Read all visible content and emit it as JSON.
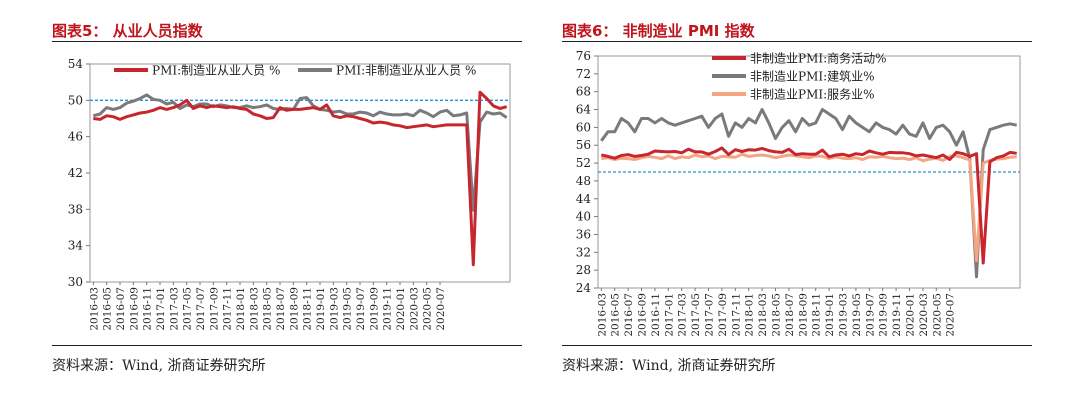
{
  "chart_data": [
    {
      "type": "line",
      "title": "图表5： 从业人员指数",
      "source": "资料来源：Wind, 浙商证券研究所",
      "ylim": [
        30,
        54
      ],
      "yticks": [
        "54",
        "50",
        "46",
        "42",
        "38",
        "34",
        "30"
      ],
      "reference_line": 50,
      "x_ticks": [
        "2016-03",
        "2016-05",
        "2016-07",
        "2016-09",
        "2016-11",
        "2017-01",
        "2017-03",
        "2017-05",
        "2017-07",
        "2017-09",
        "2017-11",
        "2018-01",
        "2018-03",
        "2018-05",
        "2018-07",
        "2018-09",
        "2018-11",
        "2019-01",
        "2019-03",
        "2019-05",
        "2019-07",
        "2019-09",
        "2019-11",
        "2020-01",
        "2020-03",
        "2020-05",
        "2020-07"
      ],
      "legend_position": "top",
      "series": [
        {
          "name": "PMI:制造业从业人员 %",
          "color": "#c8262e",
          "values": [
            48.0,
            47.9,
            48.3,
            48.2,
            47.9,
            48.2,
            48.4,
            48.6,
            48.7,
            48.9,
            49.2,
            49.0,
            49.2,
            49.5,
            50.0,
            49.1,
            49.4,
            49.2,
            49.4,
            49.3,
            49.2,
            49.3,
            49.1,
            49.0,
            48.5,
            48.3,
            48.0,
            48.1,
            49.2,
            48.9,
            49.0,
            49.0,
            49.1,
            49.2,
            49.0,
            49.5,
            48.3,
            48.1,
            48.3,
            48.2,
            48.0,
            47.8,
            47.5,
            47.6,
            47.5,
            47.3,
            47.2,
            47.0,
            47.1,
            47.2,
            47.3,
            47.1,
            47.2,
            47.3,
            47.3,
            47.3,
            47.3,
            31.9,
            50.9,
            50.2,
            49.4,
            49.1,
            49.3
          ]
        },
        {
          "name": "PMI:非制造业从业人员 %",
          "color": "#7a7a7a",
          "values": [
            48.3,
            48.5,
            49.2,
            49.0,
            49.2,
            49.7,
            49.9,
            50.2,
            50.6,
            50.1,
            50.0,
            49.6,
            49.8,
            49.1,
            49.5,
            49.3,
            49.6,
            49.6,
            49.3,
            49.5,
            49.4,
            49.2,
            49.2,
            49.4,
            49.2,
            49.3,
            49.5,
            49.1,
            49.0,
            49.1,
            49.0,
            50.2,
            50.3,
            49.4,
            49.0,
            48.9,
            48.7,
            48.8,
            48.5,
            48.5,
            48.7,
            48.6,
            48.3,
            48.7,
            48.5,
            48.4,
            48.4,
            48.5,
            48.3,
            48.9,
            48.6,
            48.2,
            48.7,
            48.9,
            48.3,
            48.4,
            48.6,
            37.9,
            47.6,
            48.7,
            48.5,
            48.6,
            48.1
          ]
        }
      ]
    },
    {
      "type": "line",
      "title": "图表6： 非制造业 PMI 指数",
      "source": "资料来源：Wind, 浙商证券研究所",
      "ylim": [
        24,
        76
      ],
      "yticks": [
        "76",
        "72",
        "68",
        "64",
        "60",
        "56",
        "52",
        "48",
        "44",
        "40",
        "36",
        "32",
        "28",
        "24"
      ],
      "reference_line": 50,
      "x_ticks": [
        "2016-03",
        "2016-05",
        "2016-07",
        "2016-09",
        "2016-11",
        "2017-01",
        "2017-03",
        "2017-05",
        "2017-07",
        "2017-09",
        "2017-11",
        "2018-01",
        "2018-03",
        "2018-05",
        "2018-07",
        "2018-09",
        "2018-11",
        "2019-01",
        "2019-03",
        "2019-05",
        "2019-07",
        "2019-09",
        "2019-11",
        "2020-01",
        "2020-03",
        "2020-05",
        "2020-07"
      ],
      "legend_position": "top",
      "series": [
        {
          "name": "非制造业PMI:商务活动%",
          "color": "#c8262e",
          "values": [
            53.8,
            53.5,
            53.1,
            53.7,
            53.9,
            53.5,
            53.7,
            54.0,
            54.7,
            54.6,
            54.5,
            54.6,
            54.3,
            55.1,
            54.5,
            54.5,
            54.0,
            54.6,
            55.4,
            53.9,
            55.0,
            54.6,
            55.0,
            54.9,
            55.3,
            54.8,
            54.5,
            54.4,
            55.1,
            53.9,
            54.1,
            54.0,
            54.0,
            54.9,
            53.4,
            53.8,
            54.0,
            53.6,
            54.1,
            53.9,
            54.7,
            54.3,
            54.0,
            54.4,
            54.3,
            54.3,
            54.1,
            53.6,
            53.8,
            53.5,
            53.2,
            53.8,
            52.8,
            54.4,
            54.1,
            53.5,
            54.1,
            29.6,
            52.3,
            53.2,
            53.6,
            54.4,
            54.2
          ]
        },
        {
          "name": "非制造业PMI:建筑业%",
          "color": "#7a7a7a",
          "values": [
            57.0,
            59.0,
            59.0,
            62.0,
            61.0,
            59.0,
            62.0,
            62.0,
            61.0,
            62.0,
            61.0,
            60.5,
            61.0,
            61.5,
            62.0,
            62.5,
            60.0,
            62.0,
            63.0,
            58.0,
            61.0,
            60.0,
            62.0,
            61.0,
            64.0,
            61.0,
            57.5,
            60.0,
            61.5,
            59.0,
            62.0,
            60.5,
            61.0,
            64.0,
            63.0,
            62.0,
            59.5,
            62.5,
            61.0,
            60.0,
            59.0,
            61.0,
            60.0,
            59.5,
            58.5,
            60.5,
            58.5,
            58.0,
            61.0,
            57.5,
            60.0,
            60.5,
            59.0,
            56.0,
            59.0,
            53.0,
            26.5,
            55.0,
            59.5,
            60.0,
            60.5,
            60.8,
            60.5
          ]
        },
        {
          "name": "非制造业PMI:服务业%",
          "color": "#f4a582",
          "values": [
            53.0,
            53.2,
            52.8,
            53.1,
            53.0,
            52.8,
            53.2,
            53.5,
            53.3,
            53.0,
            53.6,
            53.0,
            53.4,
            53.2,
            53.8,
            53.4,
            53.6,
            53.0,
            53.5,
            53.4,
            53.3,
            54.0,
            53.5,
            53.7,
            53.8,
            53.6,
            53.2,
            53.5,
            53.8,
            53.6,
            53.4,
            53.2,
            53.6,
            53.5,
            53.0,
            53.4,
            53.1,
            53.0,
            53.2,
            52.8,
            53.4,
            53.3,
            53.5,
            53.2,
            53.0,
            53.1,
            52.8,
            53.2,
            52.5,
            52.9,
            53.1,
            52.6,
            53.5,
            53.6,
            53.2,
            52.7,
            30.1,
            52.0,
            52.6,
            52.9,
            53.0,
            53.3,
            53.4
          ]
        }
      ]
    }
  ]
}
